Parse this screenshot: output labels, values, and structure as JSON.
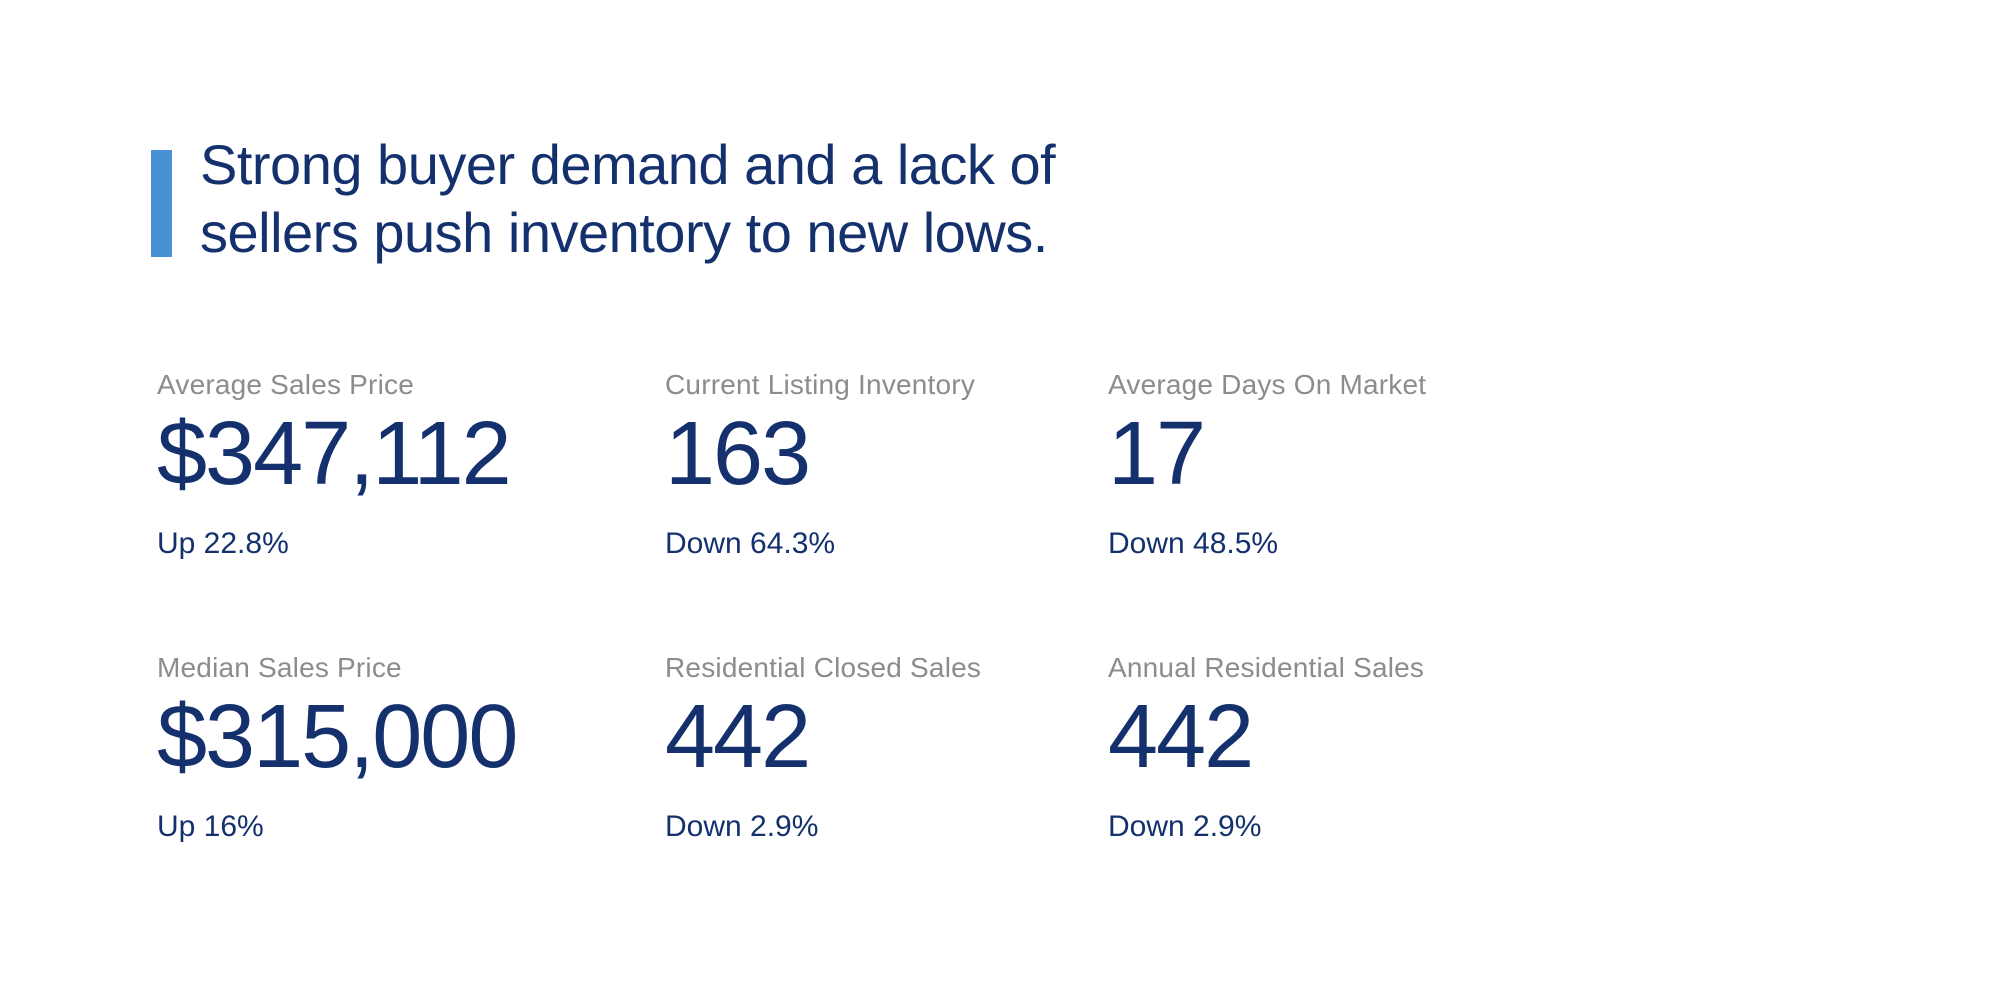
{
  "headline": {
    "line1": "Strong buyer demand and a lack of",
    "line2": "sellers push inventory to new lows."
  },
  "stats": [
    {
      "label": "Average Sales Price",
      "value": "$347,112",
      "change": "Up 22.8%"
    },
    {
      "label": "Current Listing Inventory",
      "value": "163",
      "change": "Down 64.3%"
    },
    {
      "label": "Average Days On Market",
      "value": "17",
      "change": "Down 48.5%"
    },
    {
      "label": "Median Sales Price",
      "value": "$315,000",
      "change": "Up 16%"
    },
    {
      "label": "Residential Closed Sales",
      "value": "442",
      "change": "Down 2.9%"
    },
    {
      "label": "Annual Residential Sales",
      "value": "442",
      "change": "Down 2.9%"
    }
  ],
  "colors": {
    "accent_bar": "#4a90d4",
    "navy_text": "#14316e",
    "label_gray": "#8c8c8c",
    "background": "#ffffff"
  }
}
